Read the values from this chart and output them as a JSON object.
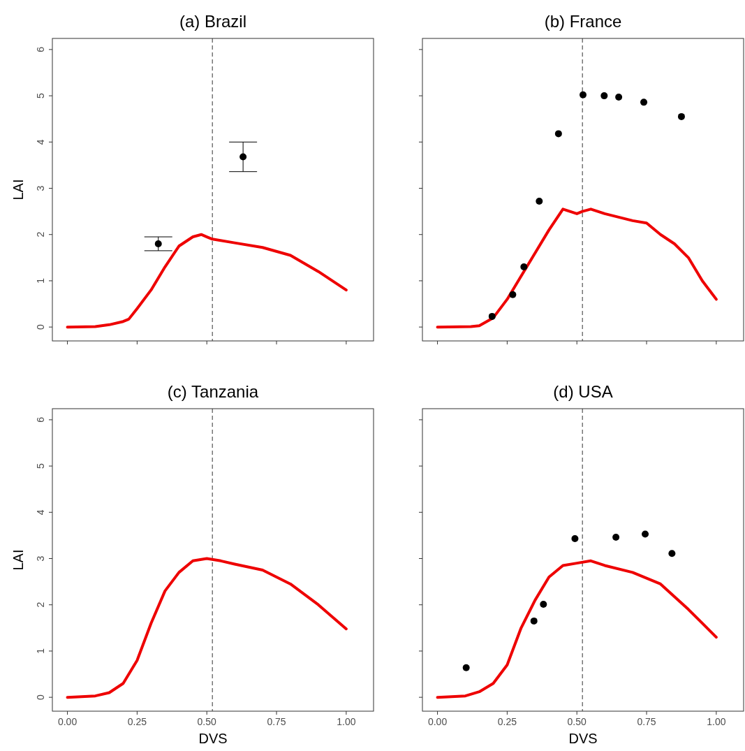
{
  "chart_data": [
    {
      "type": "line",
      "title": "(a) Brazil",
      "ylabel": "LAI",
      "xlim": [
        -0.054,
        1.098
      ],
      "ylim": [
        -0.3,
        6.24
      ],
      "xticks": [
        {
          "value": 0,
          "label": null
        },
        {
          "value": 0.25,
          "label": null
        },
        {
          "value": 0.5,
          "label": null
        },
        {
          "value": 0.75,
          "label": null
        },
        {
          "value": 1,
          "label": null
        }
      ],
      "yticks": [
        0,
        1,
        2,
        3,
        4,
        5,
        6
      ],
      "tick_labels": "y",
      "grid": false,
      "ref_lines": [
        {
          "axis": "x",
          "value": 0.52,
          "color": "#555555",
          "line_style": "dashed"
        }
      ],
      "series": [
        {
          "type": "line",
          "color": "#ee0000",
          "x": [
            0,
            0.1,
            0.15,
            0.2,
            0.22,
            0.25,
            0.3,
            0.35,
            0.4,
            0.45,
            0.48,
            0.5,
            0.52,
            0.6,
            0.7,
            0.8,
            0.9,
            1.0
          ],
          "values": [
            0,
            0.01,
            0.05,
            0.12,
            0.17,
            0.4,
            0.8,
            1.3,
            1.75,
            1.95,
            2.0,
            1.95,
            1.9,
            1.82,
            1.72,
            1.55,
            1.2,
            0.8
          ]
        },
        {
          "type": "scatter",
          "marker": "circle",
          "color": "#000000",
          "x": [
            0.326,
            0.63
          ],
          "values": [
            1.8,
            3.68
          ],
          "errors": [
            [
              1.65,
              1.95
            ],
            [
              3.36,
              4.0
            ]
          ]
        }
      ]
    },
    {
      "type": "line",
      "title": "(b) France",
      "xlim": [
        -0.054,
        1.098
      ],
      "ylim": [
        -0.3,
        6.24
      ],
      "xticks": [
        {
          "value": 0,
          "label": null
        },
        {
          "value": 0.25,
          "label": null
        },
        {
          "value": 0.5,
          "label": null
        },
        {
          "value": 0.75,
          "label": null
        },
        {
          "value": 1,
          "label": null
        }
      ],
      "yticks": [
        {
          "value": 0,
          "label": null
        },
        {
          "value": 1,
          "label": null
        },
        {
          "value": 2,
          "label": null
        },
        {
          "value": 3,
          "label": null
        },
        {
          "value": 4,
          "label": null
        },
        {
          "value": 5,
          "label": null
        },
        {
          "value": 6,
          "label": null
        }
      ],
      "tick_labels": false,
      "grid": false,
      "ref_lines": [
        {
          "axis": "x",
          "value": 0.52,
          "color": "#555555",
          "line_style": "dashed"
        }
      ],
      "series": [
        {
          "type": "line",
          "color": "#ee0000",
          "x": [
            0,
            0.12,
            0.15,
            0.2,
            0.25,
            0.3,
            0.35,
            0.4,
            0.45,
            0.5,
            0.52,
            0.55,
            0.6,
            0.7,
            0.75,
            0.8,
            0.85,
            0.9,
            0.95,
            1.0
          ],
          "values": [
            0,
            0.01,
            0.03,
            0.2,
            0.6,
            1.1,
            1.6,
            2.1,
            2.55,
            2.45,
            2.5,
            2.55,
            2.45,
            2.3,
            2.25,
            2.0,
            1.8,
            1.5,
            1.0,
            0.6
          ]
        },
        {
          "type": "scatter",
          "marker": "circle",
          "color": "#000000",
          "x": [
            0.196,
            0.27,
            0.31,
            0.365,
            0.434,
            0.522,
            0.598,
            0.65,
            0.74,
            0.875
          ],
          "values": [
            0.23,
            0.7,
            1.3,
            2.72,
            4.18,
            5.02,
            5.0,
            4.97,
            4.86,
            4.55
          ]
        }
      ]
    },
    {
      "type": "line",
      "title": "(c) Tanzania",
      "xlabel": "DVS",
      "ylabel": "LAI",
      "xlim": [
        -0.054,
        1.098
      ],
      "ylim": [
        -0.3,
        6.24
      ],
      "xticks": [
        {
          "value": 0,
          "label": "0.00"
        },
        {
          "value": 0.25,
          "label": "0.25"
        },
        {
          "value": 0.5,
          "label": "0.50"
        },
        {
          "value": 0.75,
          "label": "0.75"
        },
        {
          "value": 1,
          "label": "1.00"
        }
      ],
      "yticks": [
        0,
        1,
        2,
        3,
        4,
        5,
        6
      ],
      "grid": false,
      "ref_lines": [
        {
          "axis": "x",
          "value": 0.52,
          "color": "#555555",
          "line_style": "dashed"
        }
      ],
      "series": [
        {
          "type": "line",
          "color": "#ee0000",
          "x": [
            0,
            0.1,
            0.15,
            0.2,
            0.25,
            0.3,
            0.35,
            0.4,
            0.45,
            0.5,
            0.55,
            0.6,
            0.7,
            0.8,
            0.9,
            1.0
          ],
          "values": [
            0,
            0.03,
            0.1,
            0.3,
            0.8,
            1.6,
            2.3,
            2.7,
            2.95,
            3.0,
            2.95,
            2.88,
            2.75,
            2.45,
            2.0,
            1.48
          ]
        }
      ]
    },
    {
      "type": "line",
      "title": "(d) USA",
      "xlabel": "DVS",
      "xlim": [
        -0.054,
        1.098
      ],
      "ylim": [
        -0.3,
        6.24
      ],
      "xticks": [
        {
          "value": 0,
          "label": "0.00"
        },
        {
          "value": 0.25,
          "label": "0.25"
        },
        {
          "value": 0.5,
          "label": "0.50"
        },
        {
          "value": 0.75,
          "label": "0.75"
        },
        {
          "value": 1,
          "label": "1.00"
        }
      ],
      "yticks": [
        {
          "value": 0,
          "label": null
        },
        {
          "value": 1,
          "label": null
        },
        {
          "value": 2,
          "label": null
        },
        {
          "value": 3,
          "label": null
        },
        {
          "value": 4,
          "label": null
        },
        {
          "value": 5,
          "label": null
        },
        {
          "value": 6,
          "label": null
        }
      ],
      "tick_labels": "x",
      "grid": false,
      "ref_lines": [
        {
          "axis": "x",
          "value": 0.52,
          "color": "#555555",
          "line_style": "dashed"
        }
      ],
      "series": [
        {
          "type": "line",
          "color": "#ee0000",
          "x": [
            0,
            0.1,
            0.15,
            0.2,
            0.25,
            0.3,
            0.35,
            0.4,
            0.45,
            0.5,
            0.55,
            0.6,
            0.7,
            0.8,
            0.9,
            0.95,
            1.0
          ],
          "values": [
            0,
            0.03,
            0.12,
            0.3,
            0.7,
            1.5,
            2.1,
            2.6,
            2.85,
            2.9,
            2.95,
            2.85,
            2.7,
            2.45,
            1.9,
            1.6,
            1.3
          ]
        },
        {
          "type": "scatter",
          "marker": "circle",
          "color": "#000000",
          "x": [
            0.103,
            0.346,
            0.38,
            0.493,
            0.64,
            0.745,
            0.841
          ],
          "values": [
            0.64,
            1.65,
            2.01,
            3.43,
            3.46,
            3.53,
            3.11
          ]
        }
      ]
    }
  ]
}
